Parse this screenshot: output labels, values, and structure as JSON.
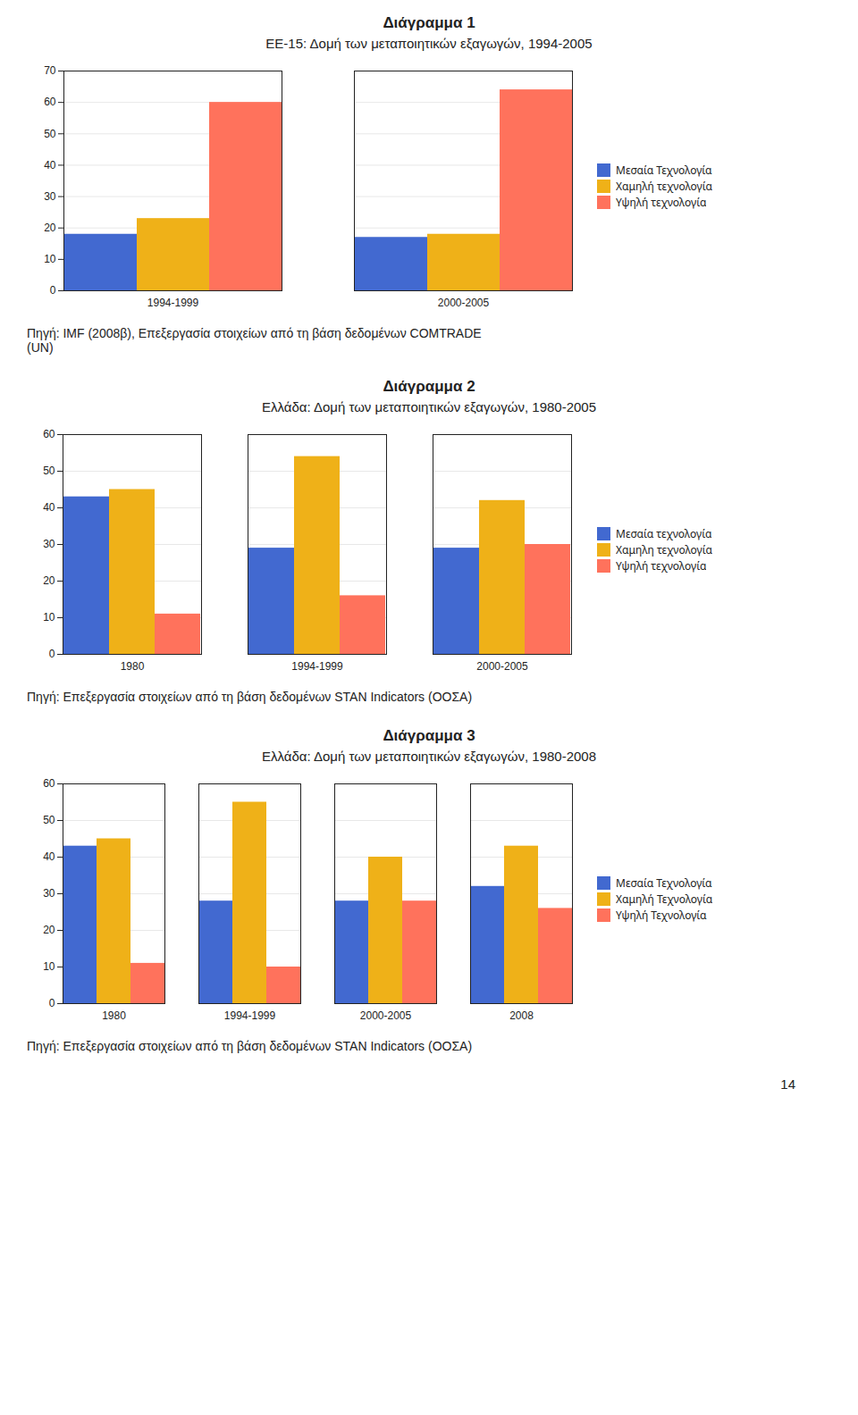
{
  "chart_data": [
    {
      "type": "bar",
      "title": "Διάγραμμα 1",
      "subtitle": "ΕΕ-15: Δομή των μεταποιητικών εξαγωγών, 1994-2005",
      "categories": [
        "1994-1999",
        "2000-2005"
      ],
      "series": [
        {
          "name": "Μεσαία Τεχνολογία",
          "values": [
            18,
            17
          ]
        },
        {
          "name": "Χαμηλή τεχνολογία",
          "values": [
            23,
            18
          ]
        },
        {
          "name": "Υψηλή τεχνολογία",
          "values": [
            60,
            64
          ]
        }
      ],
      "ylim": [
        0,
        70
      ],
      "yticks": [
        0,
        10,
        20,
        30,
        40,
        50,
        60,
        70
      ],
      "grid": true,
      "legend": "right",
      "source": [
        "Πηγή: IMF (2008β), Επεξεργασία στοιχείων από τη βάση δεδομένων COMTRADE",
        "(UN)"
      ]
    },
    {
      "type": "bar",
      "title": "Διάγραμμα 2",
      "subtitle": "Ελλάδα: Δομή των μεταποιητικών εξαγωγών, 1980-2005",
      "categories": [
        "1980",
        "1994-1999",
        "2000-2005"
      ],
      "series": [
        {
          "name": "Μεσαία τεχνολογία",
          "values": [
            43,
            29,
            29
          ]
        },
        {
          "name": "Χαμηλη τεχνολογία",
          "values": [
            45,
            54,
            42
          ]
        },
        {
          "name": "Υψηλή τεχνολογία",
          "values": [
            11,
            16,
            30
          ]
        }
      ],
      "ylim": [
        0,
        60
      ],
      "yticks": [
        0,
        10,
        20,
        30,
        40,
        50,
        60
      ],
      "grid": true,
      "legend": "right",
      "source": [
        "Πηγή: Επεξεργασία στοιχείων από τη βάση δεδομένων STAN Indicators (ΟΟΣΑ)"
      ]
    },
    {
      "type": "bar",
      "title": "Διάγραμμα 3",
      "subtitle": "Ελλάδα: Δομή των μεταποιητικών εξαγωγών, 1980-2008",
      "categories": [
        "1980",
        "1994-1999",
        "2000-2005",
        "2008"
      ],
      "series": [
        {
          "name": "Μεσαία Τεχνολογία",
          "values": [
            43,
            28,
            28,
            32
          ]
        },
        {
          "name": "Χαμηλή Τεχνολογία",
          "values": [
            45,
            55,
            40,
            43
          ]
        },
        {
          "name": "Υψηλή Τεχνολογία",
          "values": [
            11,
            10,
            28,
            26
          ]
        }
      ],
      "ylim": [
        0,
        60
      ],
      "yticks": [
        0,
        10,
        20,
        30,
        40,
        50,
        60
      ],
      "grid": true,
      "legend": "right",
      "source": [
        "Πηγή: Επεξεργασία στοιχείων από τη βάση δεδομένων STAN Indicators (ΟΟΣΑ)"
      ],
      "annotations": [
        "14"
      ]
    }
  ]
}
